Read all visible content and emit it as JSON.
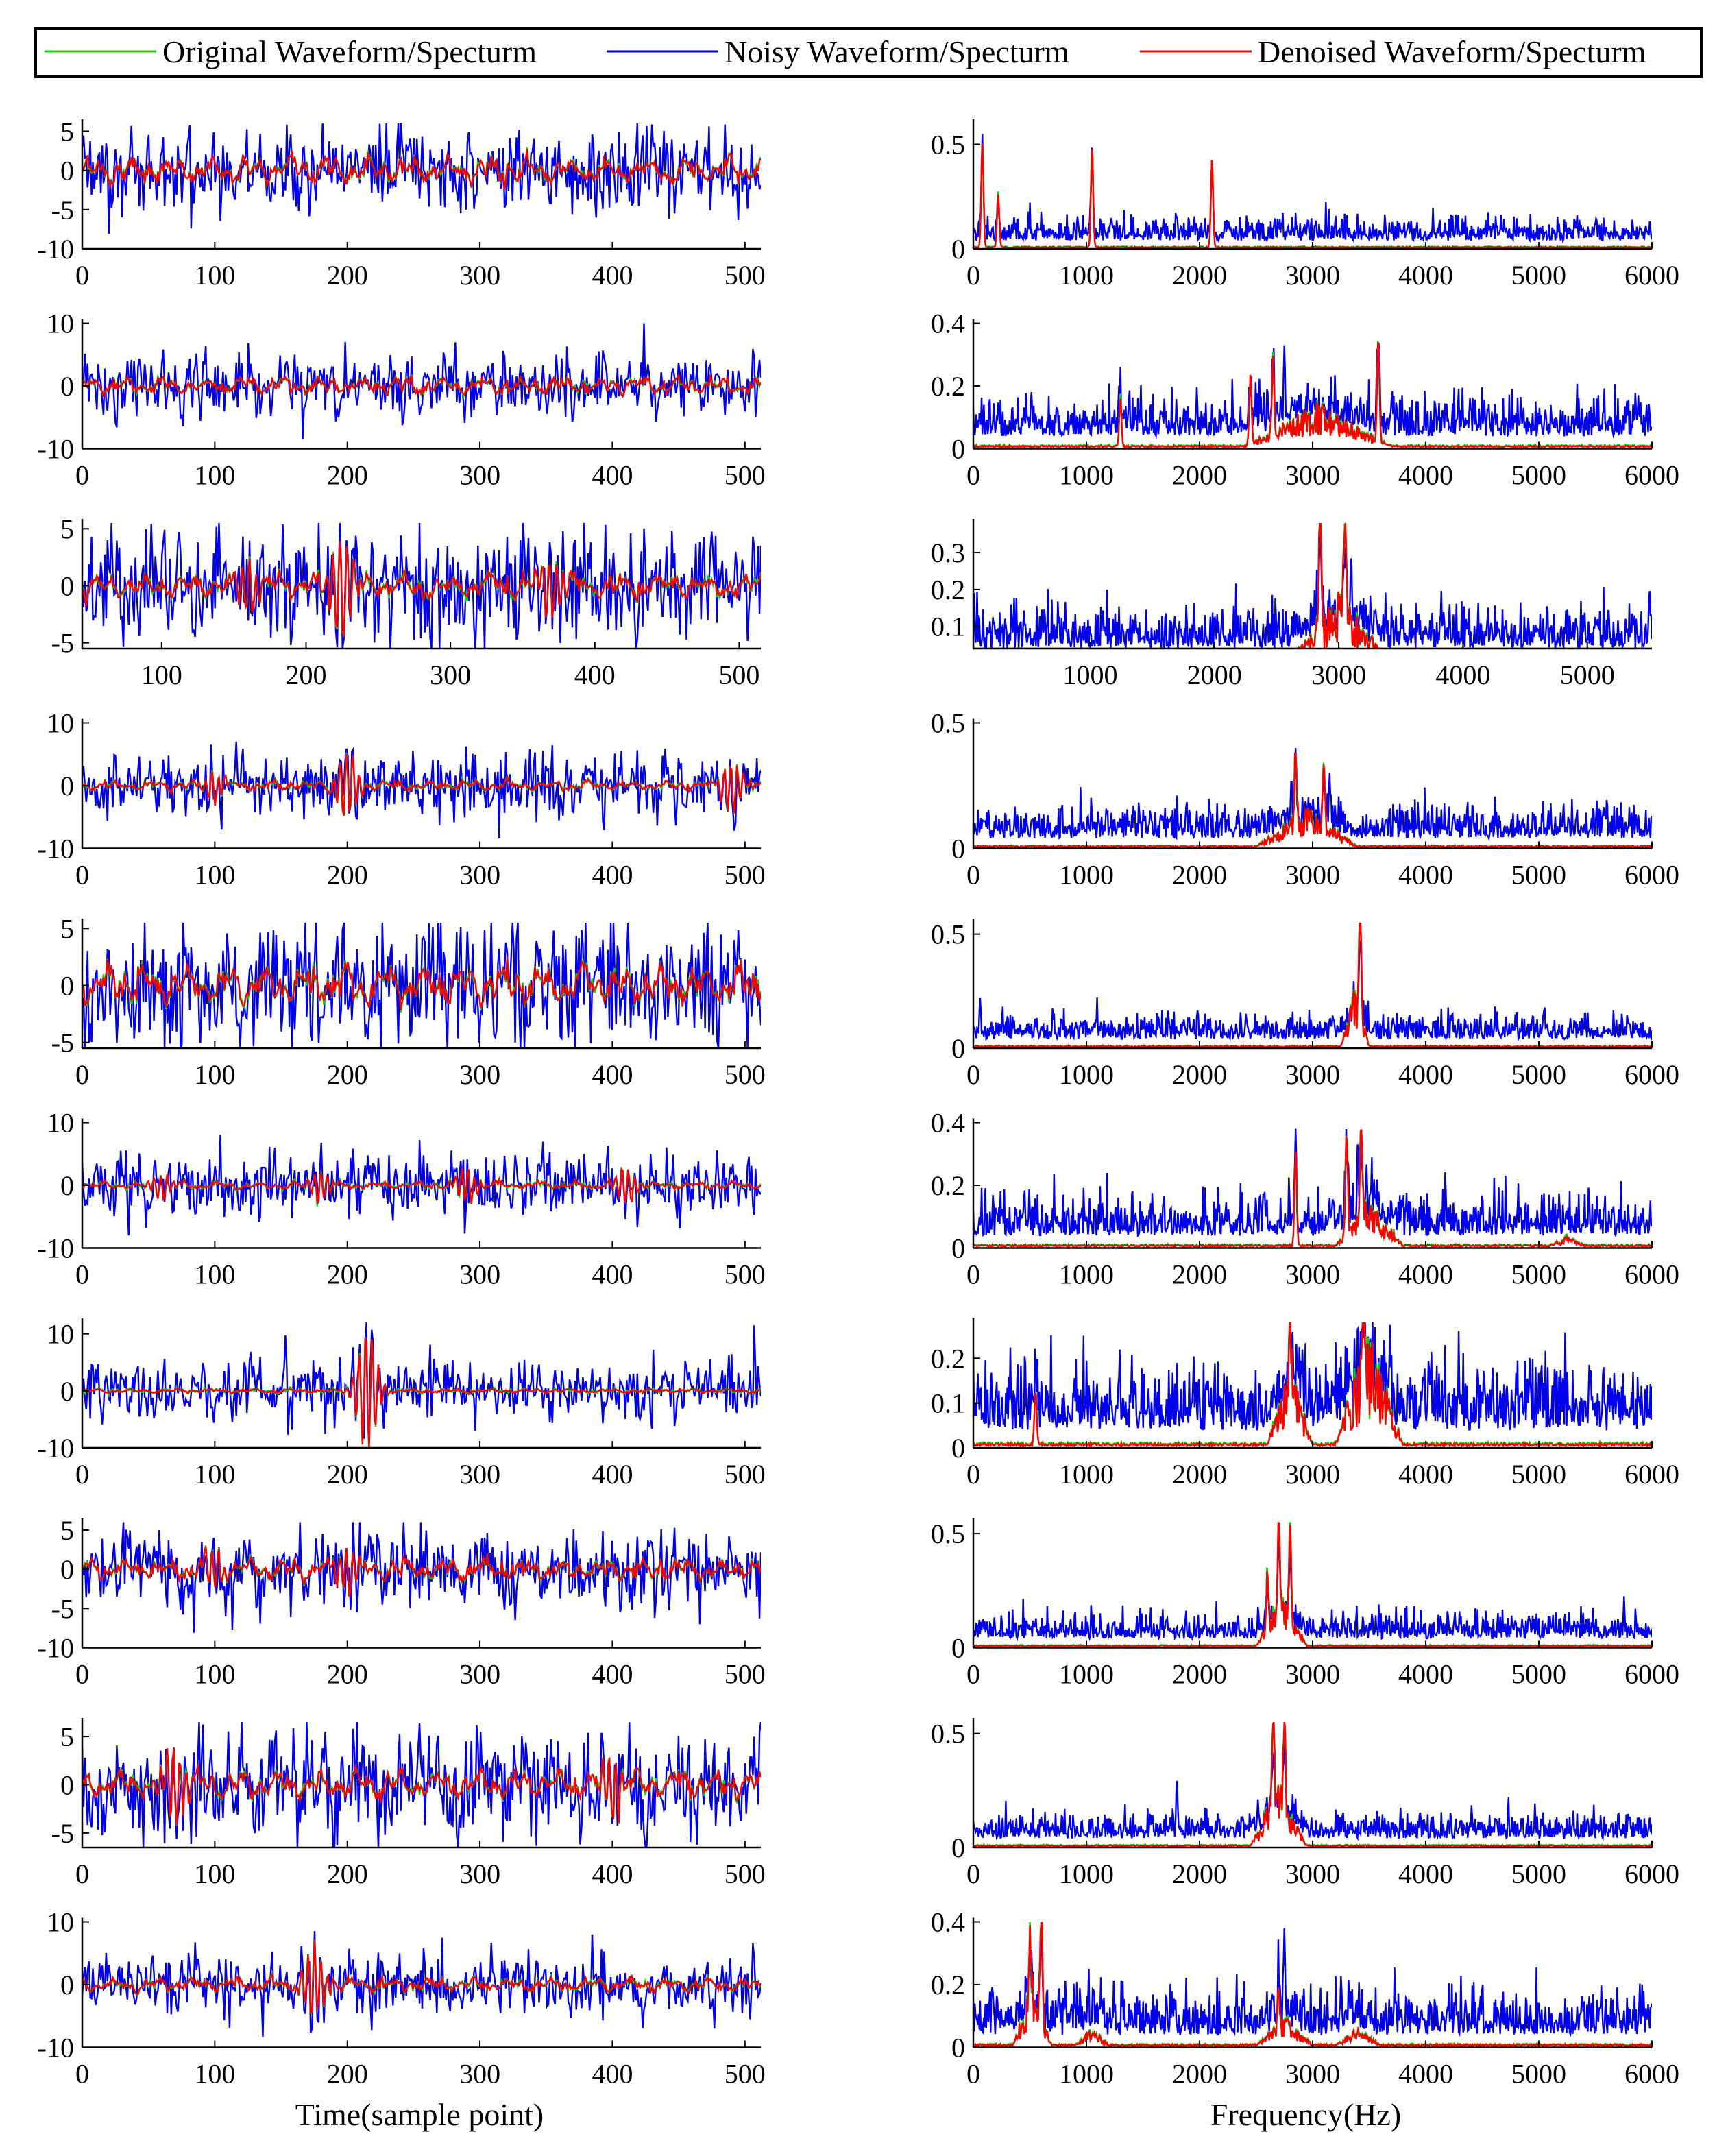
{
  "colors": {
    "original": "#00dd00",
    "noisy": "#0000ee",
    "denoised": "#ff0000",
    "axis": "#000000"
  },
  "legend": {
    "entries": [
      {
        "label": "Original Waveform/Specturm",
        "color": "original"
      },
      {
        "label": "Noisy Waveform/Specturm",
        "color": "noisy"
      },
      {
        "label": "Denoised Waveform/Specturm",
        "color": "denoised"
      }
    ]
  },
  "xlabels": {
    "left": "Time(sample point)",
    "right": "Frequency(Hz)"
  },
  "chart_data": [
    {
      "type": "line",
      "panel": "waveform",
      "row": 1,
      "xlim": [
        0,
        512
      ],
      "ylim": [
        -10,
        6
      ],
      "xticks": [
        0,
        100,
        200,
        300,
        400,
        500
      ],
      "yticks": [
        5,
        0,
        -5,
        -10
      ],
      "series": [
        {
          "name": "Original Waveform/Specturm",
          "noise_amp": 1.5,
          "peak_abs": 8.5
        },
        {
          "name": "Noisy Waveform/Specturm",
          "noise_amp": 3.0,
          "peak_abs": 8.5
        },
        {
          "name": "Denoised Waveform/Specturm",
          "noise_amp": 1.4
        }
      ]
    },
    {
      "type": "line",
      "panel": "waveform",
      "row": 2,
      "xlim": [
        0,
        512
      ],
      "ylim": [
        -10,
        10
      ],
      "xticks": [
        0,
        100,
        200,
        300,
        400,
        500
      ],
      "yticks": [
        10,
        0,
        -10
      ],
      "series": [
        {
          "name": "Original Waveform/Specturm",
          "noise_amp": 1.2
        },
        {
          "name": "Noisy Waveform/Specturm",
          "noise_amp": 3.0,
          "peak_abs": 7
        },
        {
          "name": "Denoised Waveform/Specturm",
          "noise_amp": 1.1
        }
      ]
    },
    {
      "type": "line",
      "panel": "waveform",
      "row": 3,
      "xlim": [
        45,
        515
      ],
      "ylim": [
        -5.5,
        5.5
      ],
      "xticks": [
        100,
        200,
        300,
        400,
        500
      ],
      "yticks": [
        5,
        0,
        -5
      ],
      "series": [
        {
          "name": "Original Waveform/Specturm",
          "noise_amp": 1.0
        },
        {
          "name": "Noisy Waveform/Specturm",
          "noise_amp": 2.8,
          "peak_abs": 5.2
        },
        {
          "name": "Denoised Waveform/Specturm",
          "noise_amp": 0.9,
          "bursts": [
            [
              160,
              2.5
            ],
            [
              225,
              4.5
            ],
            [
              370,
              2.5
            ]
          ]
        }
      ]
    },
    {
      "type": "line",
      "panel": "waveform",
      "row": 4,
      "xlim": [
        0,
        512
      ],
      "ylim": [
        -10,
        10
      ],
      "xticks": [
        0,
        100,
        200,
        300,
        400,
        500
      ],
      "yticks": [
        10,
        0,
        -10
      ],
      "series": [
        {
          "name": "Original Waveform/Specturm",
          "noise_amp": 0.8
        },
        {
          "name": "Noisy Waveform/Specturm",
          "noise_amp": 3.0,
          "peak_abs": 7
        },
        {
          "name": "Denoised Waveform/Specturm",
          "noise_amp": 0.7,
          "bursts": [
            [
              100,
              2.5
            ],
            [
              200,
              5.5
            ],
            [
              490,
              4
            ]
          ]
        }
      ]
    },
    {
      "type": "line",
      "panel": "waveform",
      "row": 5,
      "xlim": [
        0,
        512
      ],
      "ylim": [
        -5.5,
        5.5
      ],
      "xticks": [
        0,
        100,
        200,
        300,
        400,
        500
      ],
      "yticks": [
        5,
        0,
        -5
      ],
      "series": [
        {
          "name": "Original Waveform/Specturm",
          "noise_amp": 1.5
        },
        {
          "name": "Noisy Waveform/Specturm",
          "noise_amp": 3.0,
          "peak_abs": 5.2
        },
        {
          "name": "Denoised Waveform/Specturm",
          "noise_amp": 1.4
        }
      ]
    },
    {
      "type": "line",
      "panel": "waveform",
      "row": 6,
      "xlim": [
        0,
        512
      ],
      "ylim": [
        -10,
        10
      ],
      "xticks": [
        0,
        100,
        200,
        300,
        400,
        500
      ],
      "yticks": [
        10,
        0,
        -10
      ],
      "series": [
        {
          "name": "Original Waveform/Specturm",
          "noise_amp": 0.6
        },
        {
          "name": "Noisy Waveform/Specturm",
          "noise_amp": 3.0,
          "peak_abs": 8
        },
        {
          "name": "Denoised Waveform/Specturm",
          "noise_amp": 0.5,
          "bursts": [
            [
              60,
              2
            ],
            [
              180,
              2.5
            ],
            [
              290,
              3
            ],
            [
              410,
              3
            ]
          ]
        }
      ]
    },
    {
      "type": "line",
      "panel": "waveform",
      "row": 7,
      "xlim": [
        0,
        512
      ],
      "ylim": [
        -10,
        12
      ],
      "xticks": [
        0,
        100,
        200,
        300,
        400,
        500
      ],
      "yticks": [
        10,
        0,
        -10
      ],
      "series": [
        {
          "name": "Original Waveform/Specturm",
          "noise_amp": 0.4
        },
        {
          "name": "Noisy Waveform/Specturm",
          "noise_amp": 3.0,
          "peak_abs": 11.5
        },
        {
          "name": "Denoised Waveform/Specturm",
          "noise_amp": 0.3,
          "bursts": [
            [
              215,
              11
            ]
          ]
        }
      ]
    },
    {
      "type": "line",
      "panel": "waveform",
      "row": 8,
      "xlim": [
        0,
        512
      ],
      "ylim": [
        -10,
        6
      ],
      "xticks": [
        0,
        100,
        200,
        300,
        400,
        500
      ],
      "yticks": [
        5,
        0,
        -5,
        -10
      ],
      "series": [
        {
          "name": "Original Waveform/Specturm",
          "noise_amp": 1.2
        },
        {
          "name": "Noisy Waveform/Specturm",
          "noise_amp": 2.8,
          "peak_abs": 7
        },
        {
          "name": "Denoised Waveform/Specturm",
          "noise_amp": 1.1,
          "bursts": [
            [
              100,
              2.5
            ],
            [
              200,
              3
            ]
          ]
        }
      ]
    },
    {
      "type": "line",
      "panel": "waveform",
      "row": 9,
      "xlim": [
        0,
        512
      ],
      "ylim": [
        -6.5,
        6.5
      ],
      "xticks": [
        0,
        100,
        200,
        300,
        400,
        500
      ],
      "yticks": [
        5,
        0,
        -5
      ],
      "series": [
        {
          "name": "Original Waveform/Specturm",
          "noise_amp": 1.5
        },
        {
          "name": "Noisy Waveform/Specturm",
          "noise_amp": 3.2,
          "peak_abs": 6.3
        },
        {
          "name": "Denoised Waveform/Specturm",
          "noise_amp": 1.2,
          "bursts": [
            [
              70,
              4
            ],
            [
              400,
              3
            ]
          ]
        }
      ]
    },
    {
      "type": "line",
      "panel": "waveform",
      "row": 10,
      "xlim": [
        0,
        512
      ],
      "ylim": [
        -10,
        10
      ],
      "xticks": [
        0,
        100,
        200,
        300,
        400,
        500
      ],
      "yticks": [
        10,
        0,
        -10
      ],
      "series": [
        {
          "name": "Original Waveform/Specturm",
          "noise_amp": 1.0
        },
        {
          "name": "Noisy Waveform/Specturm",
          "noise_amp": 2.8,
          "peak_abs": 8
        },
        {
          "name": "Denoised Waveform/Specturm",
          "noise_amp": 0.9,
          "bursts": [
            [
              175,
              6
            ]
          ]
        }
      ]
    },
    {
      "type": "line",
      "panel": "spectrum",
      "row": 1,
      "xlim": [
        0,
        6000
      ],
      "ylim": [
        0,
        0.6
      ],
      "xticks": [
        0,
        1000,
        2000,
        3000,
        4000,
        5000,
        6000
      ],
      "yticks": [
        0.5,
        0
      ],
      "series": [
        {
          "name": "Noisy Waveform/Specturm",
          "baseline": 0.06,
          "spread": 0.06,
          "peaks": [
            [
              80,
              0.55
            ],
            [
              1050,
              0.5
            ],
            [
              2110,
              0.42
            ]
          ]
        },
        {
          "name": "Denoised Waveform/Specturm",
          "peaks": [
            [
              80,
              0.5
            ],
            [
              220,
              0.25
            ],
            [
              1050,
              0.48
            ],
            [
              2110,
              0.42
            ]
          ]
        }
      ]
    },
    {
      "type": "line",
      "panel": "spectrum",
      "row": 2,
      "xlim": [
        0,
        6000
      ],
      "ylim": [
        0,
        0.4
      ],
      "xticks": [
        0,
        1000,
        2000,
        3000,
        4000,
        5000,
        6000
      ],
      "yticks": [
        0.4,
        0.2,
        0
      ],
      "series": [
        {
          "name": "Noisy Waveform/Specturm",
          "baseline": 0.06,
          "spread": 0.07,
          "peaks": [
            [
              2750,
              0.33
            ],
            [
              3580,
              0.34
            ]
          ]
        },
        {
          "name": "Denoised Waveform/Specturm",
          "peaks": [
            [
              1300,
              0.15
            ],
            [
              2450,
              0.22
            ],
            [
              2650,
              0.25
            ],
            [
              3580,
              0.33
            ]
          ],
          "bands": [
            [
              2400,
              3700,
              0.12
            ]
          ]
        }
      ]
    },
    {
      "type": "line",
      "panel": "spectrum",
      "row": 3,
      "xlim": [
        60,
        5520
      ],
      "ylim": [
        0.04,
        0.38
      ],
      "xticks": [
        1000,
        2000,
        3000,
        4000,
        5000
      ],
      "yticks": [
        0.3,
        0.2,
        0.1
      ],
      "series": [
        {
          "name": "Noisy Waveform/Specturm",
          "baseline": 0.06,
          "spread": 0.06,
          "peaks": [
            [
              2850,
              0.36
            ],
            [
              3100,
              0.3
            ],
            [
              5500,
              0.2
            ]
          ]
        },
        {
          "name": "Denoised Waveform/Specturm",
          "peaks": [
            [
              2850,
              0.36
            ],
            [
              3050,
              0.3
            ]
          ],
          "bands": [
            [
              2600,
              3400,
              0.16
            ]
          ]
        }
      ]
    },
    {
      "type": "line",
      "panel": "spectrum",
      "row": 4,
      "xlim": [
        0,
        6000
      ],
      "ylim": [
        0,
        0.5
      ],
      "xticks": [
        0,
        1000,
        2000,
        3000,
        4000,
        5000,
        6000
      ],
      "yticks": [
        0.5,
        0
      ],
      "series": [
        {
          "name": "Noisy Waveform/Specturm",
          "baseline": 0.06,
          "spread": 0.07,
          "peaks": [
            [
              2850,
              0.4
            ],
            [
              3150,
              0.3
            ]
          ]
        },
        {
          "name": "Denoised Waveform/Specturm",
          "peaks": [
            [
              2850,
              0.32
            ],
            [
              3100,
              0.28
            ]
          ],
          "bands": [
            [
              2500,
              3400,
              0.14
            ]
          ]
        }
      ]
    },
    {
      "type": "line",
      "panel": "spectrum",
      "row": 5,
      "xlim": [
        0,
        6000
      ],
      "ylim": [
        0,
        0.55
      ],
      "xticks": [
        0,
        1000,
        2000,
        3000,
        4000,
        5000,
        6000
      ],
      "yticks": [
        0.5,
        0
      ],
      "series": [
        {
          "name": "Noisy Waveform/Specturm",
          "baseline": 0.06,
          "spread": 0.06,
          "peaks": [
            [
              60,
              0.22
            ],
            [
              3420,
              0.5
            ]
          ]
        },
        {
          "name": "Denoised Waveform/Specturm",
          "peaks": [
            [
              3420,
              0.52
            ]
          ],
          "bands": [
            [
              3250,
              3500,
              0.25
            ]
          ]
        }
      ]
    },
    {
      "type": "line",
      "panel": "spectrum",
      "row": 6,
      "xlim": [
        0,
        6000
      ],
      "ylim": [
        0,
        0.4
      ],
      "xticks": [
        0,
        1000,
        2000,
        3000,
        4000,
        5000,
        6000
      ],
      "yticks": [
        0.4,
        0.2,
        0
      ],
      "series": [
        {
          "name": "Noisy Waveform/Specturm",
          "baseline": 0.06,
          "spread": 0.07,
          "peaks": [
            [
              2850,
              0.38
            ],
            [
              3400,
              0.35
            ]
          ]
        },
        {
          "name": "Denoised Waveform/Specturm",
          "peaks": [
            [
              2850,
              0.3
            ],
            [
              3300,
              0.33
            ],
            [
              3430,
              0.34
            ]
          ],
          "bands": [
            [
              3200,
              3800,
              0.13
            ],
            [
              5100,
              5400,
              0.03
            ]
          ]
        }
      ]
    },
    {
      "type": "line",
      "panel": "spectrum",
      "row": 7,
      "xlim": [
        0,
        6000
      ],
      "ylim": [
        0,
        0.28
      ],
      "xticks": [
        0,
        1000,
        2000,
        3000,
        4000,
        5000,
        6000
      ],
      "yticks": [
        0.2,
        0.1,
        0
      ],
      "series": [
        {
          "name": "Noisy Waveform/Specturm",
          "baseline": 0.06,
          "spread": 0.08,
          "peaks": [
            [
              550,
              0.2
            ],
            [
              3450,
              0.27
            ]
          ]
        },
        {
          "name": "Denoised Waveform/Specturm",
          "peaks": [
            [
              550,
              0.12
            ],
            [
              2800,
              0.2
            ],
            [
              3450,
              0.27
            ]
          ],
          "bands": [
            [
              2600,
              3000,
              0.16
            ],
            [
              3200,
              3800,
              0.22
            ]
          ]
        }
      ]
    },
    {
      "type": "line",
      "panel": "spectrum",
      "row": 8,
      "xlim": [
        0,
        6000
      ],
      "ylim": [
        0,
        0.55
      ],
      "xticks": [
        0,
        1000,
        2000,
        3000,
        4000,
        5000,
        6000
      ],
      "yticks": [
        0.5,
        0
      ],
      "series": [
        {
          "name": "Noisy Waveform/Specturm",
          "baseline": 0.06,
          "spread": 0.06,
          "peaks": [
            [
              2700,
              0.5
            ],
            [
              2800,
              0.45
            ]
          ]
        },
        {
          "name": "Denoised Waveform/Specturm",
          "peaks": [
            [
              2600,
              0.28
            ],
            [
              2700,
              0.45
            ],
            [
              2800,
              0.44
            ]
          ],
          "bands": [
            [
              2500,
              2950,
              0.2
            ]
          ]
        }
      ]
    },
    {
      "type": "line",
      "panel": "spectrum",
      "row": 9,
      "xlim": [
        0,
        6000
      ],
      "ylim": [
        0,
        0.55
      ],
      "xticks": [
        0,
        1000,
        2000,
        3000,
        4000,
        5000,
        6000
      ],
      "yticks": [
        0.5,
        0
      ],
      "series": [
        {
          "name": "Noisy Waveform/Specturm",
          "baseline": 0.06,
          "spread": 0.06,
          "peaks": [
            [
              1800,
              0.3
            ],
            [
              2750,
              0.52
            ]
          ]
        },
        {
          "name": "Denoised Waveform/Specturm",
          "peaks": [
            [
              2650,
              0.45
            ],
            [
              2750,
              0.48
            ]
          ],
          "bands": [
            [
              2450,
              2950,
              0.25
            ]
          ]
        }
      ]
    },
    {
      "type": "line",
      "panel": "spectrum",
      "row": 10,
      "xlim": [
        0,
        6000
      ],
      "ylim": [
        0,
        0.4
      ],
      "xticks": [
        0,
        1000,
        2000,
        3000,
        4000,
        5000,
        6000
      ],
      "yticks": [
        0.4,
        0.2,
        0
      ],
      "series": [
        {
          "name": "Noisy Waveform/Specturm",
          "baseline": 0.06,
          "spread": 0.08,
          "peaks": [
            [
              600,
              0.38
            ],
            [
              2750,
              0.38
            ]
          ]
        },
        {
          "name": "Denoised Waveform/Specturm",
          "peaks": [
            [
              500,
              0.25
            ],
            [
              600,
              0.38
            ],
            [
              2700,
              0.12
            ]
          ],
          "bands": [
            [
              350,
              700,
              0.18
            ],
            [
              900,
              1200,
              0.05
            ],
            [
              2500,
              3000,
              0.08
            ],
            [
              3200,
              3600,
              0.05
            ]
          ]
        }
      ]
    }
  ]
}
